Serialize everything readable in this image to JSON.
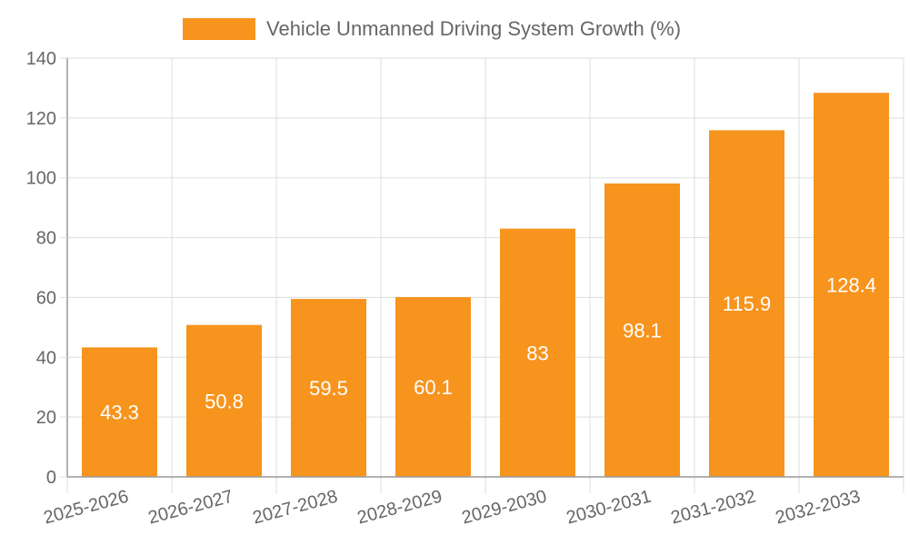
{
  "chart_data": {
    "type": "bar",
    "title": "",
    "xlabel": "",
    "ylabel": "",
    "categories": [
      "2025-2026",
      "2026-2027",
      "2027-2028",
      "2028-2029",
      "2029-2030",
      "2030-2031",
      "2031-2032",
      "2032-2033"
    ],
    "series": [
      {
        "name": "Vehicle Unmanned Driving System Growth (%)",
        "values": [
          43.3,
          50.8,
          59.5,
          60.1,
          83,
          98.1,
          115.9,
          128.4
        ],
        "color": "#F7941E"
      }
    ],
    "ylim": [
      0,
      140
    ],
    "yticks": [
      0,
      20,
      40,
      60,
      80,
      100,
      120,
      140
    ],
    "grid": true,
    "legend_position": "top-center",
    "data_labels": true,
    "x_tick_rotation": "slanted"
  }
}
